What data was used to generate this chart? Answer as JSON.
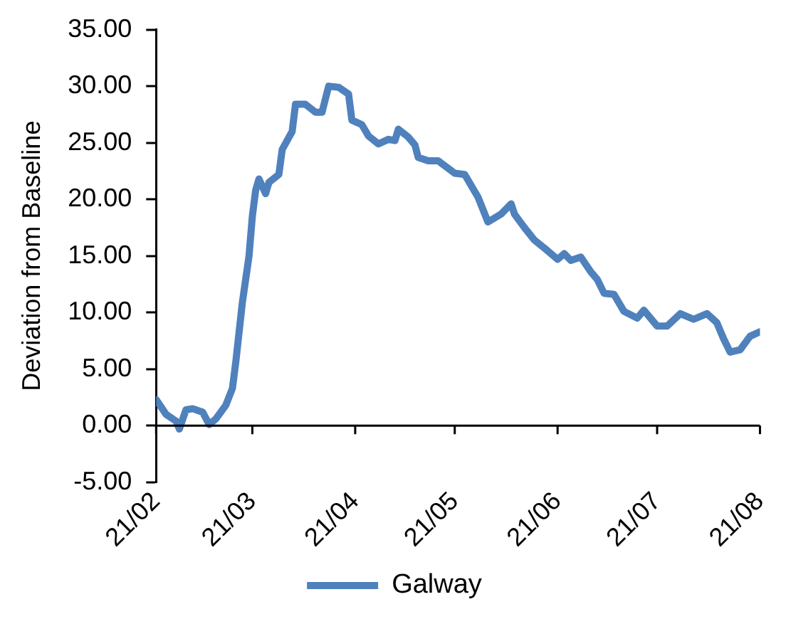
{
  "chart_data": {
    "type": "line",
    "ylabel": "Deviation from Baseline",
    "x": [
      "--02-21",
      "--02-24",
      "--02-27",
      "--02-28",
      "--03-01",
      "--03-03",
      "--03-06",
      "--03-08",
      "--03-10",
      "--03-13",
      "--03-15",
      "--03-16",
      "--03-18",
      "--03-20",
      "--03-21",
      "--03-22",
      "--03-23",
      "--03-25",
      "--03-26",
      "--03-29",
      "--03-30",
      "--04-02",
      "--04-03",
      "--04-06",
      "--04-09",
      "--04-11",
      "--04-13",
      "--04-16",
      "--04-19",
      "--04-20",
      "--04-23",
      "--04-25",
      "--04-28",
      "--05-01",
      "--05-03",
      "--05-04",
      "--05-07",
      "--05-09",
      "--05-10",
      "--05-13",
      "--05-16",
      "--05-21",
      "--05-24",
      "--05-28",
      "--05-31",
      "--06-04",
      "--06-07",
      "--06-08",
      "--06-11",
      "--06-14",
      "--06-17",
      "--06-21",
      "--06-23",
      "--06-25",
      "--06-28",
      "--07-01",
      "--07-03",
      "--07-05",
      "--07-08",
      "--07-11",
      "--07-15",
      "--07-17",
      "--07-21",
      "--07-24",
      "--07-28",
      "--08-01",
      "--08-05",
      "--08-08",
      "--08-10",
      "--08-12",
      "--08-15",
      "--08-18",
      "--08-21"
    ],
    "series": [
      {
        "name": "Galway",
        "color": "#4f81bd",
        "values": [
          2.3,
          1.0,
          0.4,
          -0.3,
          1.4,
          1.5,
          1.2,
          0.1,
          0.6,
          1.8,
          3.3,
          5.6,
          10.9,
          15.0,
          18.5,
          20.8,
          21.8,
          20.5,
          21.5,
          22.2,
          24.4,
          26.0,
          28.4,
          28.4,
          27.7,
          27.7,
          30.0,
          29.9,
          29.3,
          27.0,
          26.6,
          25.6,
          24.9,
          25.3,
          25.2,
          26.2,
          25.5,
          24.8,
          23.7,
          23.4,
          23.4,
          22.3,
          22.2,
          20.2,
          18.0,
          18.7,
          19.6,
          18.7,
          17.5,
          16.4,
          15.7,
          14.7,
          15.2,
          14.6,
          14.9,
          13.6,
          12.9,
          11.7,
          11.6,
          10.1,
          9.5,
          10.2,
          8.8,
          8.8,
          9.9,
          9.4,
          9.9,
          9.1,
          7.7,
          6.5,
          6.7,
          7.9,
          8.3
        ]
      }
    ],
    "xlim": [
      "--02-21",
      "--08-21"
    ],
    "xticks": [
      {
        "value": "--02-21",
        "label": "21/02"
      },
      {
        "value": "--03-21",
        "label": "21/03"
      },
      {
        "value": "--04-21",
        "label": "21/04"
      },
      {
        "value": "--05-21",
        "label": "21/05"
      },
      {
        "value": "--06-21",
        "label": "21/06"
      },
      {
        "value": "--07-21",
        "label": "21/07"
      },
      {
        "value": "--08-21",
        "label": "21/08"
      }
    ],
    "ylim": [
      -5,
      35
    ],
    "yticks": [
      {
        "value": -5,
        "label": "-5.00"
      },
      {
        "value": 0,
        "label": "0.00"
      },
      {
        "value": 5,
        "label": "5.00"
      },
      {
        "value": 10,
        "label": "10.00"
      },
      {
        "value": 15,
        "label": "15.00"
      },
      {
        "value": 20,
        "label": "20.00"
      },
      {
        "value": 25,
        "label": "25.00"
      },
      {
        "value": 30,
        "label": "30.00"
      },
      {
        "value": 35,
        "label": "35.00"
      }
    ],
    "grid": false,
    "legend": "bottom",
    "marker": "none",
    "line_style": "solid"
  }
}
